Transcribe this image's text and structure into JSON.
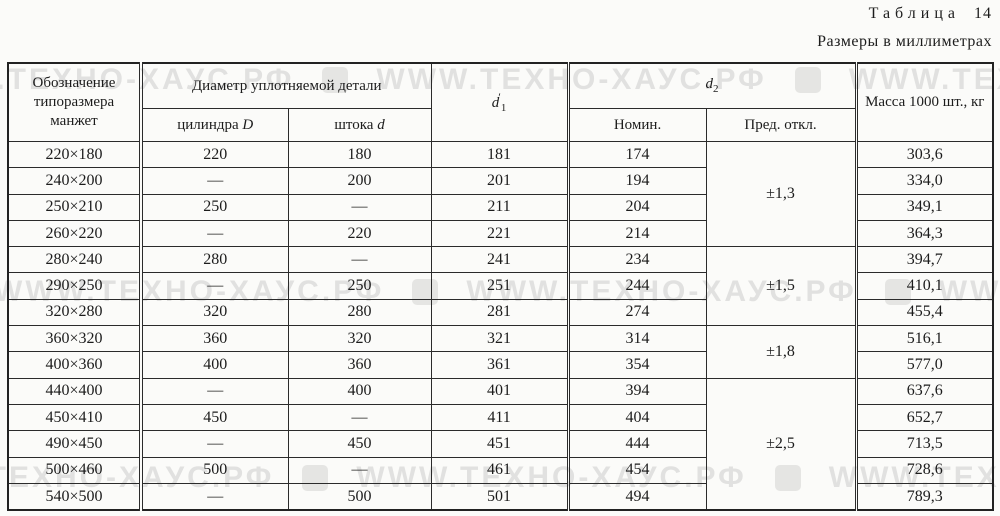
{
  "page": {
    "table_label_word": "Таблица",
    "table_label_number": "14",
    "units_note": "Размеры в миллиметрах"
  },
  "watermark": {
    "text": "WWW.ТЕХНО-ХАУС.РФ"
  },
  "table": {
    "headers": {
      "designation": "Обозначение типоразмера манжет",
      "diameter_group": "Диаметр уплотняемой детали",
      "cylinder_prefix": "цилиндра",
      "cylinder_var": "D",
      "rod_prefix": "штока",
      "rod_var": "d",
      "d1_var": "d",
      "d1_prime": "′",
      "d1_sub": "1",
      "d2_var": "d",
      "d2_sub": "2",
      "nominal": "Номин.",
      "deviation": "Пред. откл.",
      "mass": "Масса 1000 шт., кг"
    },
    "rows": [
      {
        "designation": "220×180",
        "cylinder": "220",
        "rod": "180",
        "d1": "181",
        "nominal": "174",
        "mass": "303,6"
      },
      {
        "designation": "240×200",
        "cylinder": "—",
        "rod": "200",
        "d1": "201",
        "nominal": "194",
        "mass": "334,0"
      },
      {
        "designation": "250×210",
        "cylinder": "250",
        "rod": "—",
        "d1": "211",
        "nominal": "204",
        "mass": "349,1"
      },
      {
        "designation": "260×220",
        "cylinder": "—",
        "rod": "220",
        "d1": "221",
        "nominal": "214",
        "mass": "364,3"
      },
      {
        "designation": "280×240",
        "cylinder": "280",
        "rod": "—",
        "d1": "241",
        "nominal": "234",
        "mass": "394,7"
      },
      {
        "designation": "290×250",
        "cylinder": "—",
        "rod": "250",
        "d1": "251",
        "nominal": "244",
        "mass": "410,1"
      },
      {
        "designation": "320×280",
        "cylinder": "320",
        "rod": "280",
        "d1": "281",
        "nominal": "274",
        "mass": "455,4"
      },
      {
        "designation": "360×320",
        "cylinder": "360",
        "rod": "320",
        "d1": "321",
        "nominal": "314",
        "mass": "516,1"
      },
      {
        "designation": "400×360",
        "cylinder": "400",
        "rod": "360",
        "d1": "361",
        "nominal": "354",
        "mass": "577,0"
      },
      {
        "designation": "440×400",
        "cylinder": "—",
        "rod": "400",
        "d1": "401",
        "nominal": "394",
        "mass": "637,6"
      },
      {
        "designation": "450×410",
        "cylinder": "450",
        "rod": "—",
        "d1": "411",
        "nominal": "404",
        "mass": "652,7"
      },
      {
        "designation": "490×450",
        "cylinder": "—",
        "rod": "450",
        "d1": "451",
        "nominal": "444",
        "mass": "713,5"
      },
      {
        "designation": "500×460",
        "cylinder": "500",
        "rod": "—",
        "d1": "461",
        "nominal": "454",
        "mass": "728,6"
      },
      {
        "designation": "540×500",
        "cylinder": "—",
        "rod": "500",
        "d1": "501",
        "nominal": "494",
        "mass": "789,3"
      }
    ],
    "deviation_groups": [
      {
        "start": 0,
        "span": 4,
        "value": "±1,3"
      },
      {
        "start": 4,
        "span": 3,
        "value": "±1,5"
      },
      {
        "start": 7,
        "span": 2,
        "value": "±1,8"
      },
      {
        "start": 9,
        "span": 5,
        "value": "±2,5"
      }
    ]
  }
}
